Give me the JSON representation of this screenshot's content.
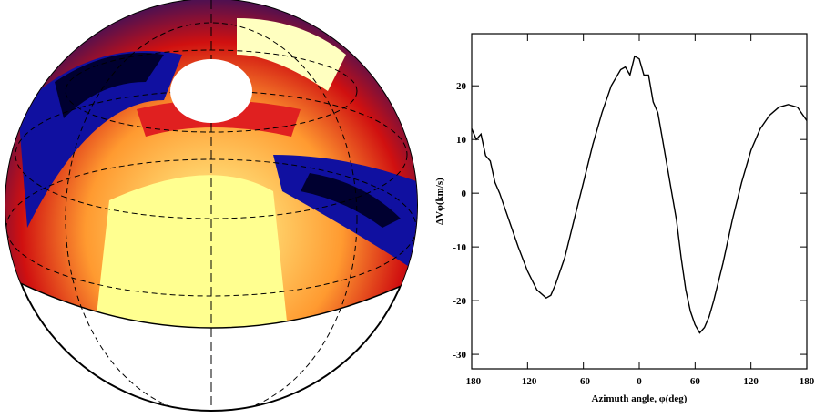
{
  "chart_data": {
    "type": "line",
    "xlabel": "Azimuth angle, φ(deg)",
    "ylabel": "ΔVφ(km/s)",
    "x": [
      -180,
      -175,
      -170,
      -165,
      -160,
      -155,
      -150,
      -140,
      -130,
      -120,
      -110,
      -100,
      -95,
      -90,
      -80,
      -70,
      -60,
      -50,
      -40,
      -30,
      -20,
      -15,
      -10,
      -5,
      0,
      5,
      10,
      15,
      20,
      25,
      30,
      35,
      40,
      45,
      50,
      55,
      60,
      65,
      70,
      75,
      80,
      90,
      100,
      110,
      120,
      130,
      140,
      150,
      160,
      170,
      180
    ],
    "values": [
      12,
      10,
      11,
      7,
      6,
      2,
      0,
      -5,
      -10,
      -14.5,
      -18,
      -19.5,
      -19,
      -17,
      -12,
      -5,
      2,
      9,
      15,
      20,
      23,
      23.5,
      22,
      25.5,
      25,
      22,
      22,
      17,
      15,
      10,
      5,
      0,
      -5,
      -12,
      -18,
      -22,
      -24.5,
      -26,
      -25,
      -23,
      -20,
      -13,
      -5,
      2,
      8,
      12,
      14.5,
      16,
      16.5,
      16,
      13.5
    ],
    "color": "#000000",
    "xlim": [
      -180,
      180
    ],
    "ylim": [
      -32.7,
      29.7
    ],
    "xticks": [
      -180,
      -120,
      -60,
      0,
      60,
      120,
      180
    ],
    "yticks": [
      -30,
      -20,
      -10,
      0,
      10,
      20
    ]
  }
}
